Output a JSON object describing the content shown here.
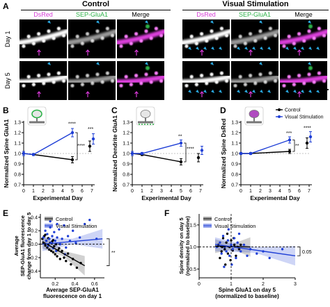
{
  "panel_a": {
    "letter": "A",
    "groups": [
      {
        "title": "Control",
        "columns": [
          "DsRed",
          "SEP-GluA1",
          "Merge"
        ]
      },
      {
        "title": "Visual Stimulation",
        "columns": [
          "DsRed",
          "SEP-GluA1",
          "Merge"
        ]
      }
    ],
    "rows": [
      "Day 1",
      "Day 5"
    ],
    "scale_bar_label": "5μm",
    "colors": {
      "dsred": "#d63ad6",
      "sep": "#2fb34a",
      "arrow_cyan": "#2aa8e0",
      "arrow_magenta": "#d63ad6"
    }
  },
  "panel_letters": {
    "B": "B",
    "C": "C",
    "D": "D",
    "E": "E",
    "F": "F"
  },
  "chart_data": [
    {
      "id": "B",
      "type": "line",
      "ylabel": "Normalized Spine GluA1",
      "xlabel": "Experimental Day",
      "x": [
        0,
        1,
        5,
        7
      ],
      "xticks": [
        "0",
        "1",
        "2",
        "3",
        "4",
        "5",
        "6",
        "7"
      ],
      "ylim": [
        0.7,
        1.3
      ],
      "yticks": [
        "0.7",
        "0.8",
        "0.9",
        "1.0",
        "1.1",
        "1.2",
        "1.3"
      ],
      "series": [
        {
          "name": "Control",
          "color": "#000000",
          "x": [
            0,
            1,
            5
          ],
          "values": [
            1.0,
            0.99,
            0.94
          ],
          "err": [
            0.02,
            0.01,
            0.03
          ]
        },
        {
          "name": "Visual Stimulation",
          "color": "#1f3fd6",
          "x": [
            0,
            1,
            5
          ],
          "values": [
            1.0,
            0.99,
            1.2
          ],
          "err": [
            0.02,
            0.01,
            0.04
          ]
        }
      ],
      "day7": {
        "control": {
          "value": 1.07,
          "err": 0.05
        },
        "stim": {
          "value": 1.14,
          "err": 0.05
        }
      },
      "annotations": [
        "****",
        "****",
        "***"
      ]
    },
    {
      "id": "C",
      "type": "line",
      "ylabel": "Normalized Dendrite GluA1",
      "xlabel": "Experimental Day",
      "x": [
        0,
        1,
        5,
        7
      ],
      "xticks": [
        "0",
        "1",
        "2",
        "3",
        "4",
        "5",
        "6",
        "7"
      ],
      "ylim": [
        0.7,
        1.3
      ],
      "yticks": [
        "0.7",
        "0.8",
        "0.9",
        "1.0",
        "1.1",
        "1.2",
        "1.3"
      ],
      "series": [
        {
          "name": "Control",
          "color": "#000000",
          "x": [
            0,
            1,
            5
          ],
          "values": [
            1.0,
            0.99,
            0.92
          ],
          "err": [
            0.02,
            0.01,
            0.03
          ]
        },
        {
          "name": "Visual Stimulation",
          "color": "#1f3fd6",
          "x": [
            0,
            1,
            5
          ],
          "values": [
            1.0,
            1.0,
            1.1
          ],
          "err": [
            0.02,
            0.01,
            0.03
          ]
        }
      ],
      "day7": {
        "control": {
          "value": 0.96,
          "err": 0.04
        },
        "stim": {
          "value": 1.03,
          "err": 0.04
        }
      },
      "annotations": [
        "**",
        "****"
      ]
    },
    {
      "id": "D",
      "type": "line",
      "ylabel": "Normalized Spine DsRed",
      "xlabel": "Experimental Day",
      "x": [
        0,
        1,
        5,
        7
      ],
      "xticks": [
        "0",
        "1",
        "2",
        "3",
        "4",
        "5",
        "6",
        "7"
      ],
      "ylim": [
        0.7,
        1.3
      ],
      "yticks": [
        "0.7",
        "0.8",
        "0.9",
        "1.0",
        "1.1",
        "1.2",
        "1.3"
      ],
      "series": [
        {
          "name": "Control",
          "color": "#000000",
          "x": [
            0,
            1,
            5
          ],
          "values": [
            1.0,
            1.0,
            1.02
          ],
          "err": [
            0.01,
            0.01,
            0.02
          ]
        },
        {
          "name": "Visual Stimulation",
          "color": "#1f3fd6",
          "x": [
            0,
            1,
            5
          ],
          "values": [
            1.0,
            1.0,
            1.13
          ],
          "err": [
            0.01,
            0.01,
            0.03
          ]
        }
      ],
      "day7": {
        "control": {
          "value": 1.1,
          "err": 0.05
        },
        "stim": {
          "value": 1.16,
          "err": 0.05
        }
      },
      "legend": [
        "Control",
        "Visual Stimulation"
      ],
      "annotations": [
        "***",
        "**",
        "****"
      ]
    },
    {
      "id": "E",
      "type": "scatter",
      "xlabel_lines": [
        "Average SEP-GluA1",
        "fluorescence on day 1"
      ],
      "ylabel_lines": [
        "Average",
        "SEP-GluA1 fluorescence",
        "change from day 1 to day 5"
      ],
      "xticks": [
        "0.2",
        "0.4",
        "0.6"
      ],
      "yticks": [
        "0.4",
        "0.2",
        "0.0",
        "-0.2",
        "-0.4"
      ],
      "xlim": [
        0.05,
        0.7
      ],
      "ylim": [
        -0.5,
        0.45
      ],
      "legend": [
        "Control",
        "Visual Stimulation"
      ],
      "significance": "**",
      "series": [
        {
          "name": "Control",
          "color": "#000000",
          "points": [
            [
              0.07,
              0.08
            ],
            [
              0.08,
              0.02
            ],
            [
              0.09,
              0.12
            ],
            [
              0.1,
              -0.02
            ],
            [
              0.11,
              0.05
            ],
            [
              0.12,
              -0.05
            ],
            [
              0.13,
              0.09
            ],
            [
              0.14,
              -0.08
            ],
            [
              0.15,
              0.02
            ],
            [
              0.16,
              -0.1
            ],
            [
              0.17,
              0.04
            ],
            [
              0.18,
              -0.12
            ],
            [
              0.19,
              -0.03
            ],
            [
              0.2,
              -0.15
            ],
            [
              0.21,
              0.0
            ],
            [
              0.22,
              -0.18
            ],
            [
              0.24,
              -0.06
            ],
            [
              0.25,
              -0.22
            ],
            [
              0.27,
              -0.1
            ],
            [
              0.29,
              -0.2
            ],
            [
              0.31,
              -0.25
            ],
            [
              0.33,
              -0.14
            ],
            [
              0.36,
              -0.3
            ],
            [
              0.38,
              -0.22
            ],
            [
              0.42,
              -0.35
            ],
            [
              0.46,
              -0.28
            ],
            [
              0.1,
              0.14
            ],
            [
              0.13,
              -0.01
            ],
            [
              0.18,
              0.06
            ],
            [
              0.23,
              -0.09
            ]
          ],
          "fit": [
            [
              0.07,
              0.04
            ],
            [
              0.5,
              -0.32
            ]
          ]
        },
        {
          "name": "Visual Stimulation",
          "color": "#1f3fd6",
          "points": [
            [
              0.08,
              0.1
            ],
            [
              0.1,
              0.2
            ],
            [
              0.11,
              0.05
            ],
            [
              0.12,
              0.15
            ],
            [
              0.13,
              -0.02
            ],
            [
              0.14,
              0.08
            ],
            [
              0.15,
              0.25
            ],
            [
              0.16,
              0.02
            ],
            [
              0.17,
              0.12
            ],
            [
              0.18,
              -0.06
            ],
            [
              0.19,
              0.18
            ],
            [
              0.2,
              0.05
            ],
            [
              0.21,
              -0.1
            ],
            [
              0.22,
              0.1
            ],
            [
              0.24,
              0.22
            ],
            [
              0.25,
              0.0
            ],
            [
              0.27,
              0.08
            ],
            [
              0.29,
              0.28
            ],
            [
              0.31,
              -0.05
            ],
            [
              0.33,
              0.12
            ],
            [
              0.35,
              0.05
            ],
            [
              0.38,
              0.2
            ],
            [
              0.41,
              0.02
            ],
            [
              0.45,
              0.1
            ],
            [
              0.5,
              0.3
            ],
            [
              0.55,
              0.36
            ],
            [
              0.62,
              0.08
            ],
            [
              0.15,
              0.34
            ],
            [
              0.22,
              0.3
            ],
            [
              0.3,
              -0.15
            ]
          ],
          "fit": [
            [
              0.07,
              0.0
            ],
            [
              0.68,
              0.08
            ]
          ]
        }
      ]
    },
    {
      "id": "F",
      "type": "scatter",
      "xlabel_lines": [
        "Spine GluA1 on day 5",
        "(normalized to baseline)"
      ],
      "ylabel_lines": [
        "Spine density on day 5",
        "(normalized to baseline)"
      ],
      "xticks": [
        "0",
        "1",
        "2",
        "3"
      ],
      "yticks": [
        "1.5",
        "1.0",
        "0.5"
      ],
      "xlim": [
        0,
        3
      ],
      "ylim": [
        0.3,
        1.75
      ],
      "legend": [
        "Control",
        "Visual Stimulation"
      ],
      "significance": "0.05",
      "series": [
        {
          "name": "Control",
          "color": "#000000",
          "points": [
            [
              0.6,
              1.05
            ],
            [
              0.7,
              0.9
            ],
            [
              0.75,
              1.2
            ],
            [
              0.8,
              0.95
            ],
            [
              0.85,
              1.1
            ],
            [
              0.9,
              0.85
            ],
            [
              0.95,
              1.0
            ],
            [
              1.0,
              1.15
            ],
            [
              1.05,
              0.92
            ],
            [
              1.1,
              1.05
            ],
            [
              1.15,
              0.8
            ],
            [
              1.2,
              1.0
            ],
            [
              0.65,
              0.75
            ],
            [
              0.88,
              1.3
            ],
            [
              0.98,
              0.7
            ],
            [
              1.25,
              0.95
            ],
            [
              0.72,
              1.0
            ],
            [
              1.08,
              1.2
            ],
            [
              0.82,
              0.6
            ],
            [
              1.3,
              1.05
            ]
          ],
          "fit": [
            [
              0.5,
              1.02
            ],
            [
              1.6,
              1.0
            ]
          ]
        },
        {
          "name": "Visual Stimulation",
          "color": "#1f3fd6",
          "points": [
            [
              0.55,
              1.0
            ],
            [
              0.65,
              1.1
            ],
            [
              0.7,
              0.85
            ],
            [
              0.75,
              1.25
            ],
            [
              0.8,
              1.0
            ],
            [
              0.85,
              0.9
            ],
            [
              0.9,
              1.15
            ],
            [
              0.95,
              0.8
            ],
            [
              1.0,
              1.05
            ],
            [
              1.05,
              0.95
            ],
            [
              1.1,
              1.2
            ],
            [
              1.15,
              0.75
            ],
            [
              1.2,
              1.1
            ],
            [
              1.3,
              0.9
            ],
            [
              1.4,
              1.05
            ],
            [
              1.5,
              0.8
            ],
            [
              1.6,
              0.95
            ],
            [
              1.8,
              0.85
            ],
            [
              2.0,
              0.9
            ],
            [
              2.2,
              0.75
            ],
            [
              2.6,
              0.95
            ],
            [
              0.92,
              1.4
            ],
            [
              1.02,
              0.6
            ],
            [
              1.25,
              1.3
            ],
            [
              0.78,
              0.55
            ]
          ],
          "fit": [
            [
              0.5,
              1.06
            ],
            [
              3.0,
              0.8
            ]
          ]
        }
      ]
    }
  ]
}
